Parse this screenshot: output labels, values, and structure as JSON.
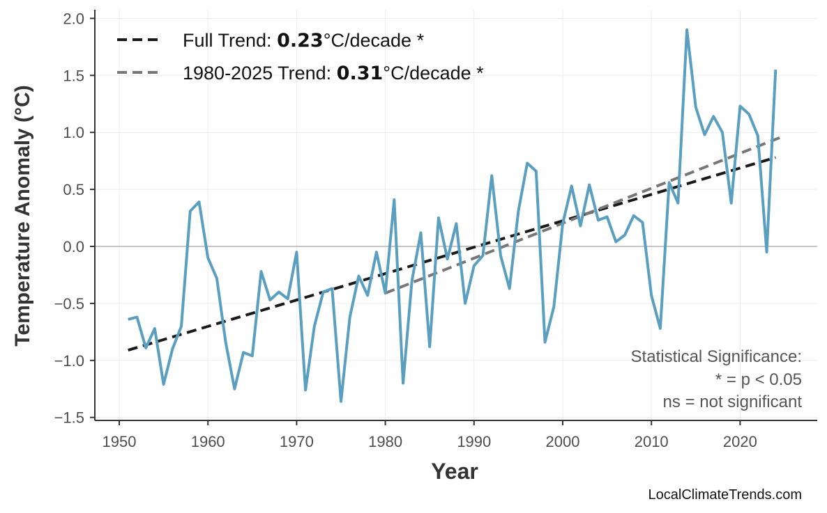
{
  "chart_data": {
    "type": "line",
    "xlabel": "Year",
    "ylabel": "Temperature Anomaly (°C)",
    "xlim": [
      1947.5,
      2028.5
    ],
    "ylim": [
      -1.5,
      2.0
    ],
    "x_ticks": [
      "1950",
      "1960",
      "1970",
      "1980",
      "1990",
      "2000",
      "2010",
      "2020"
    ],
    "y_ticks": [
      "−1.5",
      "−1.0",
      "−0.5",
      "0.0",
      "0.5",
      "1.0",
      "1.5",
      "2.0"
    ],
    "grid": true,
    "legend_position": "top-left",
    "series": [
      {
        "color": "#5a9fc0",
        "x": [
          1951,
          1952,
          1953,
          1954,
          1955,
          1956,
          1957,
          1958,
          1959,
          1960,
          1961,
          1962,
          1963,
          1964,
          1965,
          1966,
          1967,
          1968,
          1969,
          1970,
          1971,
          1972,
          1973,
          1974,
          1975,
          1976,
          1977,
          1978,
          1979,
          1980,
          1981,
          1982,
          1983,
          1984,
          1985,
          1986,
          1987,
          1988,
          1989,
          1990,
          1991,
          1992,
          1993,
          1994,
          1995,
          1996,
          1997,
          1998,
          1999,
          2000,
          2001,
          2002,
          2003,
          2004,
          2005,
          2006,
          2007,
          2008,
          2009,
          2010,
          2011,
          2012,
          2013,
          2014,
          2015,
          2016,
          2017,
          2018,
          2019,
          2020,
          2021,
          2022,
          2023,
          2024
        ],
        "y": [
          -0.64,
          -0.62,
          -0.89,
          -0.72,
          -1.21,
          -0.9,
          -0.7,
          0.31,
          0.39,
          -0.1,
          -0.28,
          -0.84,
          -1.25,
          -0.93,
          -0.96,
          -0.22,
          -0.47,
          -0.4,
          -0.46,
          -0.05,
          -1.26,
          -0.7,
          -0.4,
          -0.37,
          -1.36,
          -0.62,
          -0.26,
          -0.43,
          -0.05,
          -0.41,
          0.41,
          -1.2,
          -0.3,
          0.12,
          -0.88,
          0.25,
          -0.11,
          0.2,
          -0.5,
          -0.17,
          -0.08,
          0.62,
          -0.08,
          -0.37,
          0.31,
          0.73,
          0.66,
          -0.84,
          -0.53,
          0.2,
          0.53,
          0.18,
          0.54,
          0.23,
          0.26,
          0.04,
          0.1,
          0.27,
          0.21,
          -0.43,
          -0.72,
          0.56,
          0.38,
          1.9,
          1.22,
          0.98,
          1.14,
          1.0,
          0.38,
          1.23,
          1.16,
          0.97,
          -0.05,
          1.55
        ]
      }
    ],
    "trends": [
      {
        "prefix": "Full Trend: ",
        "value": "0.23",
        "suffix": "°C/decade *",
        "color": "#1a1a1a",
        "x": [
          1951,
          2024
        ],
        "y": [
          -0.91,
          0.78
        ]
      },
      {
        "prefix": "1980-2025 Trend: ",
        "value": "0.31",
        "suffix": "°C/decade *",
        "color": "#777777",
        "x": [
          1980,
          2025
        ],
        "y": [
          -0.41,
          0.97
        ]
      }
    ],
    "annotation": [
      "Statistical Significance:",
      "* = p < 0.05",
      "ns = not significant"
    ],
    "source": "LocalClimateTrends.com"
  }
}
